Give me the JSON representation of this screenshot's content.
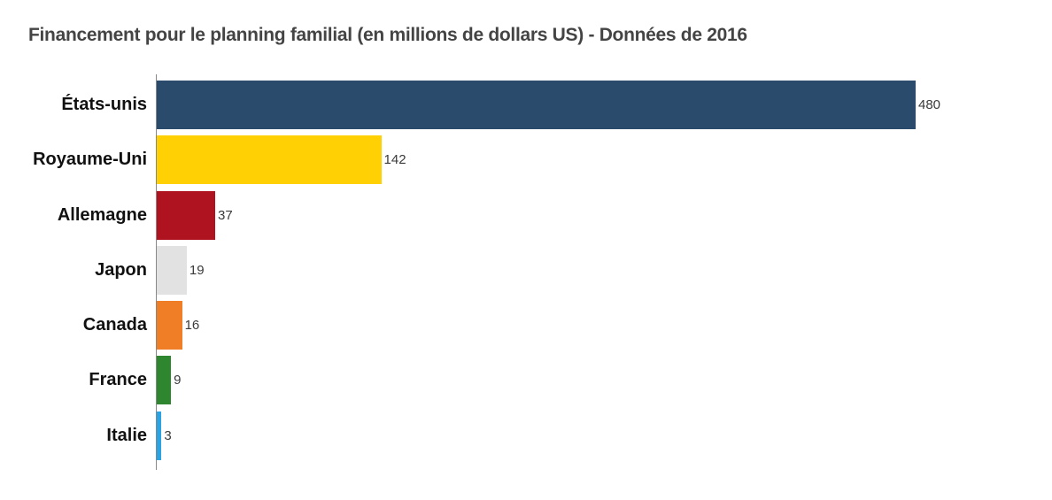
{
  "chart_data": {
    "type": "bar",
    "orientation": "horizontal",
    "title": "Financement pour le planning familial (en millions de dollars US) - Données de 2016",
    "categories": [
      "États-unis",
      "Royaume-Uni",
      "Allemagne",
      "Japon",
      "Canada",
      "France",
      "Italie"
    ],
    "values": [
      480,
      142,
      37,
      19,
      16,
      9,
      3
    ],
    "value_labels": [
      "480",
      "142",
      "37",
      "19",
      "16",
      "9",
      "3"
    ],
    "bar_colors": [
      "#2a4b6c",
      "#ffd004",
      "#af1320",
      "#e2e2e2",
      "#ef7e27",
      "#2e872e",
      "#29a3e3"
    ],
    "xlabel": "",
    "ylabel": "",
    "xlim": [
      0,
      480
    ],
    "grid": false,
    "legend": null,
    "colors": {
      "title": "#444444",
      "axis_line": "#888888",
      "category_label": "#111111",
      "value_label": "#3a3a3a",
      "background": "#ffffff"
    }
  }
}
